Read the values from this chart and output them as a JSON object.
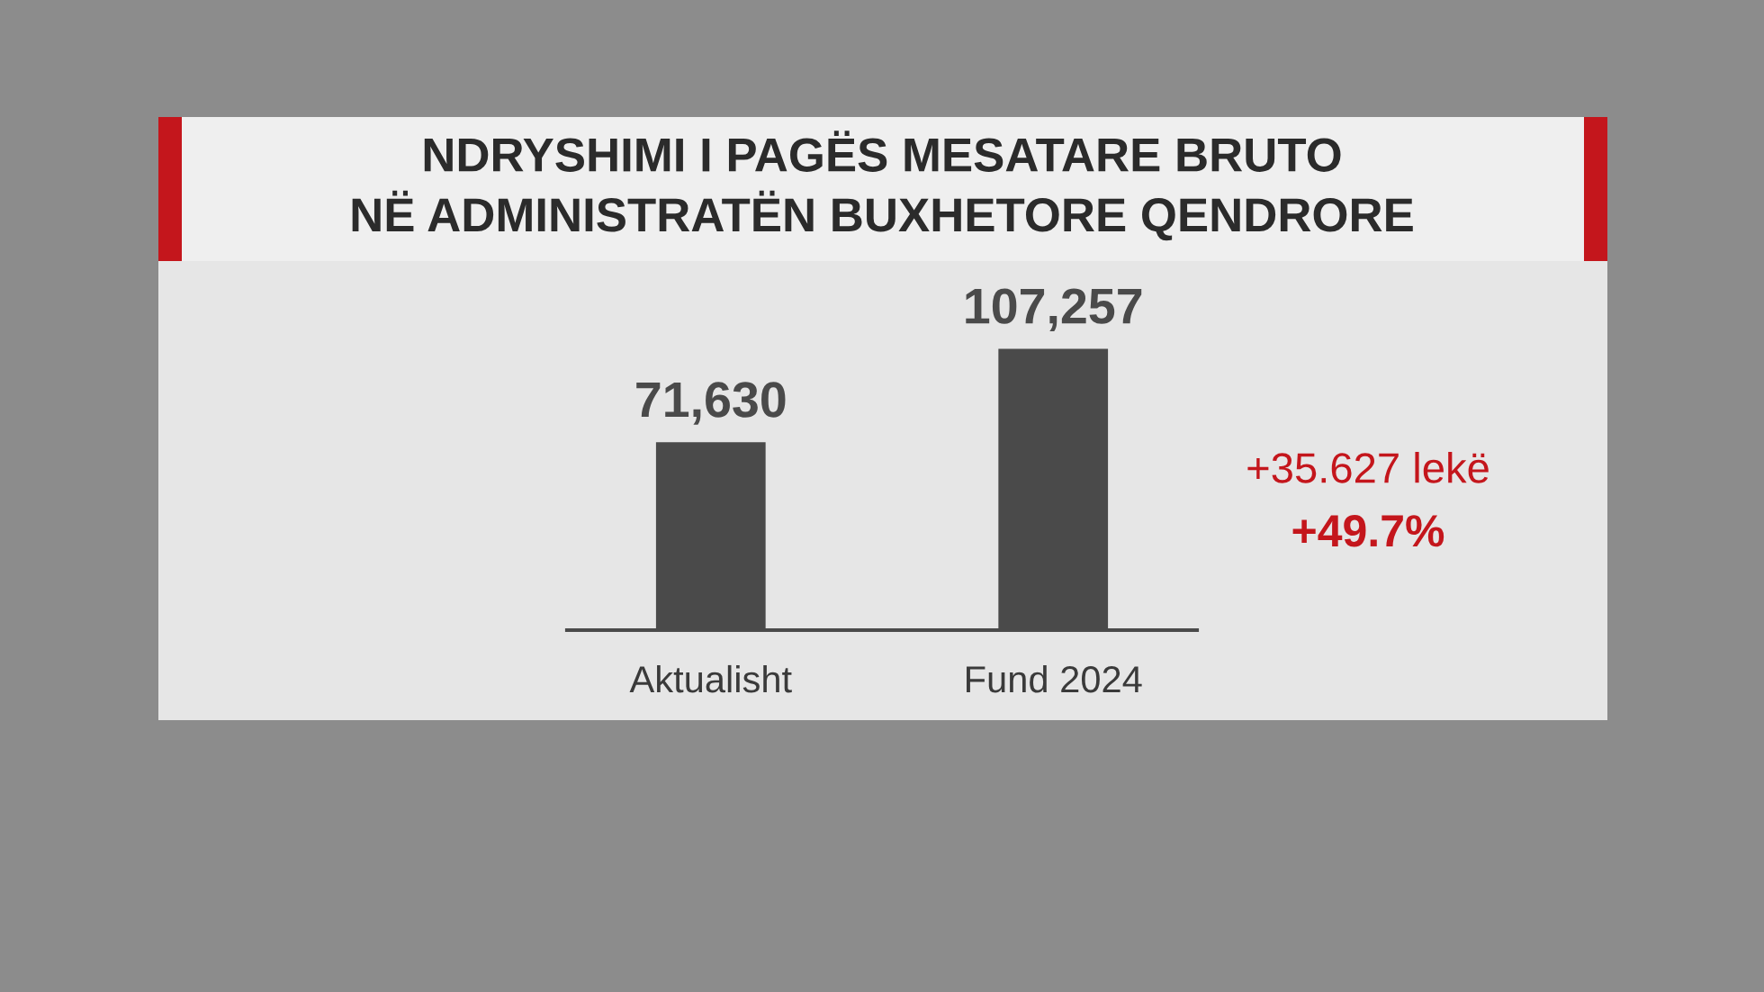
{
  "chart_data": {
    "type": "bar",
    "title": "NDRYSHIMI I PAGËS MESATARE BRUTO\nNË ADMINISTRATËN BUXHETORE QENDRORE",
    "categories": [
      "Aktualisht",
      "Fund 2024"
    ],
    "values": [
      71630,
      107257
    ],
    "value_labels": [
      "71,630",
      "107,257"
    ],
    "color": "#4a4a4a",
    "annotations": [
      "+35.627 lekë",
      "+49.7%"
    ],
    "grid": false,
    "legend": false
  }
}
